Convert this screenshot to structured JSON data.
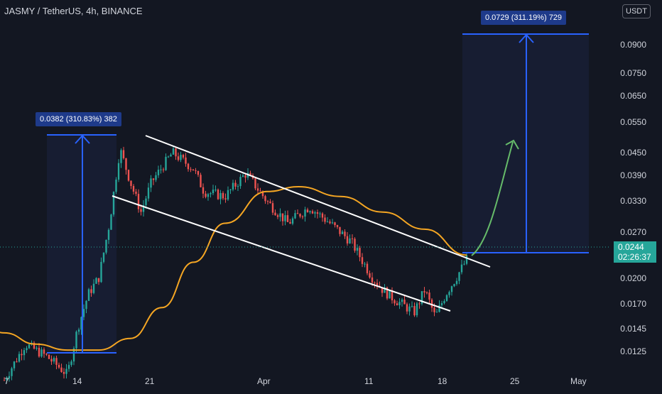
{
  "header": {
    "title": "JASMY / TetherUS, 4h, BINANCE",
    "currency_button": "USDT"
  },
  "last_price": {
    "value": "0.0244",
    "countdown": "02:26:37"
  },
  "colors": {
    "bg": "#131722",
    "up": "#26a69a",
    "down": "#ef5350",
    "ma": "#f5a623",
    "channel": "#ffffff",
    "measure": "#2962ff",
    "projection": "#66bb6a"
  },
  "chart_data": {
    "type": "line",
    "title": "JASMY / TetherUS, 4h, BINANCE",
    "y_axis": {
      "scale": "log",
      "range": [
        0.0115,
        0.108
      ],
      "tick_labels": [
        "0.0900",
        "0.0750",
        "0.0650",
        "0.0550",
        "0.0450",
        "0.0390",
        "0.0330",
        "0.0270",
        "0.0200",
        "0.0170",
        "0.0145",
        "0.0125"
      ],
      "tick_values": [
        0.09,
        0.075,
        0.065,
        0.055,
        0.045,
        0.039,
        0.033,
        0.027,
        0.02,
        0.017,
        0.0145,
        0.0125
      ]
    },
    "x_axis": {
      "tick_labels": [
        "7",
        "14",
        "21",
        "Apr",
        "11",
        "18",
        "25",
        "May"
      ]
    },
    "series": [
      {
        "kind": "price",
        "x": [
          "Mar 7",
          "Mar 9",
          "Mar 11",
          "Mar 12",
          "Mar 13",
          "Mar 14",
          "Mar 15",
          "Mar 16",
          "Mar 17",
          "Mar 18",
          "Mar 19",
          "Mar 20",
          "Mar 21",
          "Mar 23",
          "Mar 25",
          "Mar 26",
          "Mar 28",
          "Mar 30",
          "Apr 1",
          "Apr 3",
          "Apr 5",
          "Apr 7",
          "Apr 9",
          "Apr 11",
          "Apr 12",
          "Apr 13",
          "Apr 15",
          "Apr 16",
          "Apr 17",
          "Apr 18",
          "Apr 19",
          "Apr 20"
        ],
        "y": [
          0.0122,
          0.015,
          0.014,
          0.0133,
          0.0126,
          0.0165,
          0.02,
          0.022,
          0.03,
          0.046,
          0.038,
          0.032,
          0.038,
          0.045,
          0.041,
          0.036,
          0.035,
          0.04,
          0.034,
          0.03,
          0.033,
          0.03,
          0.027,
          0.022,
          0.0205,
          0.0195,
          0.018,
          0.0205,
          0.0175,
          0.02,
          0.022,
          0.0244
        ]
      },
      {
        "kind": "moving-average",
        "x": [
          "Mar 4",
          "Mar 7",
          "Mar 10",
          "Mar 13",
          "Mar 16",
          "Mar 19",
          "Mar 22",
          "Mar 25",
          "Mar 28",
          "Apr 1",
          "Apr 4",
          "Apr 8",
          "Apr 12",
          "Apr 16",
          "Apr 20"
        ],
        "y": [
          0.0175,
          0.016,
          0.015,
          0.0145,
          0.0145,
          0.0155,
          0.0185,
          0.024,
          0.03,
          0.036,
          0.037,
          0.035,
          0.032,
          0.029,
          0.025
        ]
      }
    ],
    "measures": [
      {
        "label": "0.0382 (310.83%) 382",
        "from": 0.0123,
        "to": 0.0505
      },
      {
        "label": "0.0729 (311.19%) 729",
        "from": 0.0234,
        "to": 0.0963
      }
    ],
    "channel": "descending",
    "grid": false,
    "legend": "none"
  }
}
